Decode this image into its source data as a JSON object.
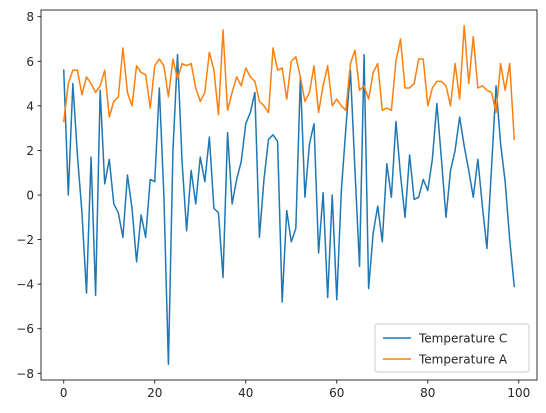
{
  "chart_data": {
    "type": "line",
    "xlim": [
      -5,
      104
    ],
    "ylim": [
      -8.3,
      8.3
    ],
    "xticks": [
      0,
      20,
      40,
      60,
      80,
      100
    ],
    "yticks": [
      -8,
      -6,
      -4,
      -2,
      0,
      2,
      4,
      6,
      8
    ],
    "legend_position": "lower-right",
    "grid": false,
    "series": [
      {
        "name": "Temperature C",
        "color": "#1f77b4",
        "x": [
          0,
          1,
          2,
          3,
          4,
          5,
          6,
          7,
          8,
          9,
          10,
          11,
          12,
          13,
          14,
          15,
          16,
          17,
          18,
          19,
          20,
          21,
          22,
          23,
          24,
          25,
          26,
          27,
          28,
          29,
          30,
          31,
          32,
          33,
          34,
          35,
          36,
          37,
          38,
          39,
          40,
          41,
          42,
          43,
          44,
          45,
          46,
          47,
          48,
          49,
          50,
          51,
          52,
          53,
          54,
          55,
          56,
          57,
          58,
          59,
          60,
          61,
          62,
          63,
          64,
          65,
          66,
          67,
          68,
          69,
          70,
          71,
          72,
          73,
          74,
          75,
          76,
          77,
          78,
          79,
          80,
          81,
          82,
          83,
          84,
          85,
          86,
          87,
          88,
          89,
          90,
          91,
          92,
          93,
          94,
          95,
          96,
          97,
          98,
          99
        ],
        "y": [
          5.6,
          0.0,
          5.0,
          1.8,
          -0.8,
          -4.4,
          1.7,
          -4.5,
          4.7,
          0.5,
          1.6,
          -0.4,
          -0.8,
          -1.9,
          0.9,
          -0.6,
          -3.0,
          -0.9,
          -1.9,
          0.7,
          0.6,
          4.8,
          0.0,
          -7.6,
          2.0,
          6.3,
          1.5,
          -1.6,
          1.1,
          -0.4,
          1.7,
          0.6,
          2.6,
          -0.6,
          -0.8,
          -3.7,
          2.8,
          -0.4,
          0.7,
          1.5,
          3.2,
          3.7,
          4.6,
          -1.9,
          0.7,
          2.5,
          2.7,
          2.4,
          -4.8,
          -0.7,
          -2.1,
          -1.5,
          5.3,
          -0.1,
          2.3,
          3.2,
          -2.6,
          0.1,
          -4.6,
          0.0,
          -4.7,
          0.2,
          3.0,
          5.6,
          1.1,
          -3.2,
          6.3,
          -4.2,
          -1.7,
          -0.5,
          -2.1,
          1.4,
          -0.1,
          3.3,
          0.9,
          -1.0,
          1.8,
          -0.2,
          -0.1,
          0.7,
          0.2,
          1.6,
          4.1,
          1.6,
          -1.0,
          1.1,
          2.0,
          3.5,
          2.2,
          1.1,
          -0.1,
          1.6,
          -0.5,
          -2.4,
          1.2,
          4.9,
          2.3,
          0.6,
          -2.0,
          -4.1
        ]
      },
      {
        "name": "Temperature A",
        "color": "#ff7f0e",
        "x": [
          0,
          1,
          2,
          3,
          4,
          5,
          6,
          7,
          8,
          9,
          10,
          11,
          12,
          13,
          14,
          15,
          16,
          17,
          18,
          19,
          20,
          21,
          22,
          23,
          24,
          25,
          26,
          27,
          28,
          29,
          30,
          31,
          32,
          33,
          34,
          35,
          36,
          37,
          38,
          39,
          40,
          41,
          42,
          43,
          44,
          45,
          46,
          47,
          48,
          49,
          50,
          51,
          52,
          53,
          54,
          55,
          56,
          57,
          58,
          59,
          60,
          61,
          62,
          63,
          64,
          65,
          66,
          67,
          68,
          69,
          70,
          71,
          72,
          73,
          74,
          75,
          76,
          77,
          78,
          79,
          80,
          81,
          82,
          83,
          84,
          85,
          86,
          87,
          88,
          89,
          90,
          91,
          92,
          93,
          94,
          95,
          96,
          97,
          98,
          99
        ],
        "y": [
          3.3,
          5.0,
          5.6,
          5.6,
          4.5,
          5.3,
          5.0,
          4.6,
          4.9,
          5.6,
          3.5,
          4.2,
          4.4,
          6.6,
          4.6,
          4.0,
          5.8,
          5.5,
          5.4,
          3.9,
          5.8,
          6.1,
          5.8,
          4.4,
          6.1,
          5.2,
          5.9,
          5.8,
          5.9,
          4.8,
          4.2,
          4.6,
          6.4,
          5.6,
          3.6,
          7.4,
          3.8,
          4.6,
          5.3,
          4.9,
          5.7,
          5.3,
          5.1,
          4.2,
          4.0,
          3.7,
          6.6,
          5.6,
          5.7,
          4.3,
          6.0,
          6.2,
          5.3,
          4.2,
          4.6,
          5.8,
          3.7,
          4.9,
          5.8,
          4.0,
          4.3,
          4.0,
          3.8,
          5.9,
          6.5,
          4.7,
          4.9,
          4.3,
          5.5,
          5.9,
          3.8,
          3.9,
          3.8,
          6.0,
          7.0,
          4.8,
          4.8,
          5.0,
          6.1,
          6.1,
          4.0,
          4.8,
          5.1,
          5.1,
          4.9,
          4.0,
          5.9,
          4.3,
          7.6,
          5.0,
          7.1,
          4.8,
          4.9,
          4.7,
          4.6,
          3.7,
          5.9,
          4.7,
          5.9,
          2.5
        ]
      }
    ]
  }
}
